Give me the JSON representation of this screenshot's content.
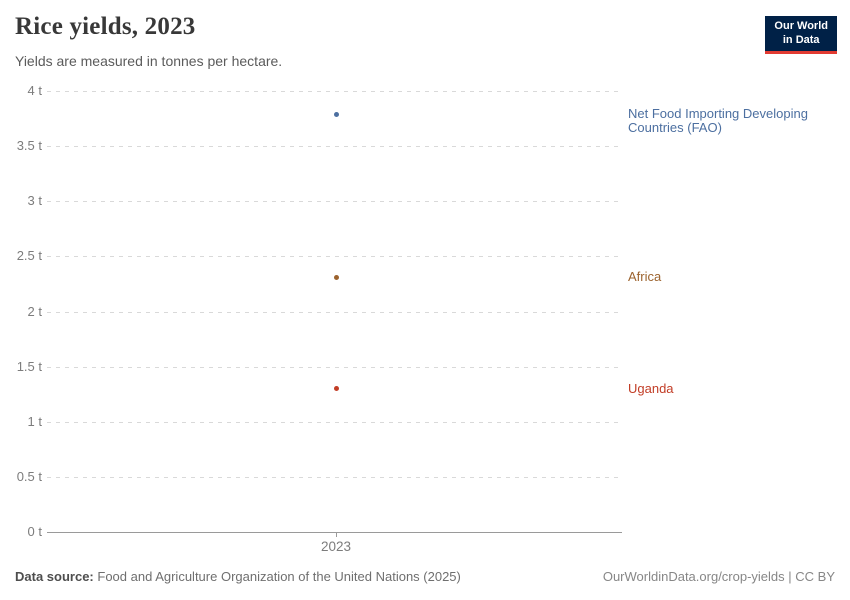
{
  "header": {
    "title": "Rice yields, 2023",
    "subtitle": "Yields are measured in tonnes per hectare.",
    "logo": {
      "line1": "Our World",
      "line2": "in Data",
      "bg_color": "#002147",
      "accent_color": "#e23b32"
    }
  },
  "chart_data": {
    "type": "scatter",
    "title": "Rice yields, 2023",
    "subtitle": "Yields are measured in tonnes per hectare.",
    "x": [
      2023
    ],
    "x_tick_label": "2023",
    "xlabel": "",
    "ylabel": "",
    "ylim": [
      0,
      4
    ],
    "ytick_step": 0.5,
    "ytick_suffix": " t",
    "grid": "dashed-horizontal",
    "legend_position": "right-labels",
    "series": [
      {
        "name": "Net Food Importing Developing Countries (FAO)",
        "label_lines": [
          "Net Food Importing Developing",
          "Countries (FAO)"
        ],
        "x": 2023,
        "value": 3.79,
        "unit": "t",
        "color": "#4c6fa0"
      },
      {
        "name": "Africa",
        "label_lines": [
          "Africa"
        ],
        "x": 2023,
        "value": 2.31,
        "unit": "t",
        "color": "#9c632e"
      },
      {
        "name": "Uganda",
        "label_lines": [
          "Uganda"
        ],
        "x": 2023,
        "value": 1.3,
        "unit": "t",
        "color": "#c23d26"
      }
    ]
  },
  "footer": {
    "source_label": "Data source:",
    "source_text": "Food and Agriculture Organization of the United Nations (2025)",
    "attribution": "OurWorldinData.org/crop-yields | CC BY"
  }
}
